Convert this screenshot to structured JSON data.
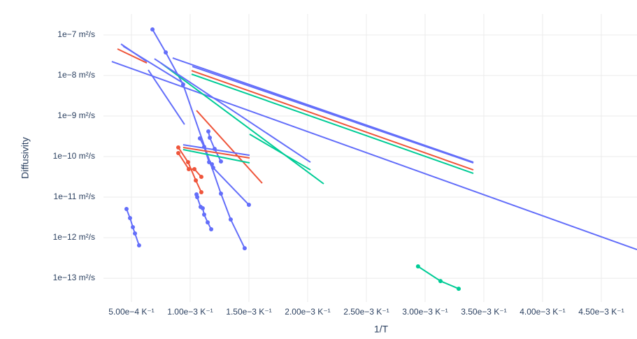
{
  "chart_data": {
    "type": "line",
    "x_label": "1/T",
    "y_label": "Diffusivity",
    "y_log": true,
    "grid": true,
    "xlim": [
      0.000262,
      0.004804
    ],
    "ylim": [
      3.29e-07,
      2.6e-14
    ],
    "xticks": [
      {
        "value": 0.0005,
        "label": "5.00e−4 K⁻¹"
      },
      {
        "value": 0.001,
        "label": "1.00e−3 K⁻¹"
      },
      {
        "value": 0.0015,
        "label": "1.50e−3 K⁻¹"
      },
      {
        "value": 0.002,
        "label": "2.00e−3 K⁻¹"
      },
      {
        "value": 0.0025,
        "label": "2.50e−3 K⁻¹"
      },
      {
        "value": 0.003,
        "label": "3.00e−3 K⁻¹"
      },
      {
        "value": 0.0035,
        "label": "3.50e−3 K⁻¹"
      },
      {
        "value": 0.004,
        "label": "4.00e−3 K⁻¹"
      },
      {
        "value": 0.0045,
        "label": "4.50e−3 K⁻¹"
      }
    ],
    "yticks": [
      {
        "value": 1e-07,
        "label": "1e−7 m²/s"
      },
      {
        "value": 1e-08,
        "label": "1e−8 m²/s"
      },
      {
        "value": 1e-09,
        "label": "1e−9 m²/s"
      },
      {
        "value": 1e-10,
        "label": "1e−10 m²/s"
      },
      {
        "value": 1e-11,
        "label": "1e−11 m²/s"
      },
      {
        "value": 1e-12,
        "label": "1e−12 m²/s"
      },
      {
        "value": 1e-13,
        "label": "1e−13 m²/s"
      }
    ],
    "series": [
      {
        "color": "#636efa",
        "markers": false,
        "x": [
          0.000333,
          0.004804
        ],
        "values": [
          2.21e-08,
          5.09e-13
        ]
      },
      {
        "color": "#636efa",
        "markers": false,
        "x": [
          0.000851,
          0.003411
        ],
        "values": [
          2.7e-08,
          7.28e-11
        ]
      },
      {
        "color": "#636efa",
        "markers": false,
        "x": [
          0.001018,
          0.003411
        ],
        "values": [
          1.67e-08,
          7e-11
        ]
      },
      {
        "color": "#ef553b",
        "markers": false,
        "x": [
          0.001012,
          0.003411
        ],
        "values": [
          1.32e-08,
          4.7e-11
        ]
      },
      {
        "color": "#00cc96",
        "markers": false,
        "x": [
          0.001012,
          0.003411
        ],
        "values": [
          1.08e-08,
          3.86e-11
        ]
      },
      {
        "color": "#636efa",
        "markers": true,
        "x": [
          0.000679,
          0.000792,
          0.00094,
          0.001262,
          0.001345,
          0.001464
        ],
        "values": [
          1.37e-07,
          3.71e-08,
          5.97e-09,
          1.22e-11,
          2.81e-12,
          5.51e-13
        ]
      },
      {
        "color": "#636efa",
        "markers": true,
        "x": [
          0.001083,
          0.001119,
          0.001161,
          0.001185
        ],
        "values": [
          2.81e-10,
          1.74e-10,
          7.28e-11,
          6.46e-11
        ]
      },
      {
        "color": "#636efa",
        "markers": true,
        "x": [
          0.001155,
          0.001167,
          0.001208,
          0.001262
        ],
        "values": [
          4.18e-10,
          2.92e-10,
          1.55e-10,
          7.57e-11
        ]
      },
      {
        "color": "#636efa",
        "markers": true,
        "x": [
          0.001196,
          0.0015
        ],
        "values": [
          5.3e-11,
          6.46e-12
        ]
      },
      {
        "color": "#ef553b",
        "markers": true,
        "x": [
          0.000899,
          0.000982,
          0.001048,
          0.001095
        ],
        "values": [
          1.68e-10,
          7.28e-11,
          2.59e-11,
          1.32e-11
        ]
      },
      {
        "color": "#ef553b",
        "markers": true,
        "x": [
          0.000899,
          0.000988,
          0.001036,
          0.001095
        ],
        "values": [
          1.22e-10,
          4.9e-11,
          4.9e-11,
          3.16e-11
        ]
      },
      {
        "color": "#ef553b",
        "markers": false,
        "x": [
          0.001054,
          0.001613
        ],
        "values": [
          1.37e-09,
          2.21e-11
        ]
      },
      {
        "color": "#636efa",
        "markers": true,
        "x": [
          0.001054,
          0.00106,
          0.001089,
          0.001107,
          0.001119,
          0.001149,
          0.001179
        ],
        "values": [
          1.17e-11,
          1e-11,
          5.74e-12,
          5.3e-12,
          3.71e-12,
          2.39e-12,
          1.61e-12
        ]
      },
      {
        "color": "#636efa",
        "markers": true,
        "x": [
          0.000458,
          0.000488,
          0.000512,
          0.00053,
          0.000565
        ],
        "values": [
          5.09e-12,
          3.04e-12,
          1.82e-12,
          1.27e-12,
          6.46e-13
        ]
      },
      {
        "color": "#00cc96",
        "markers": true,
        "x": [
          0.00294,
          0.003131,
          0.003286
        ],
        "values": [
          1.96e-13,
          8.53e-14,
          5.51e-14
        ]
      },
      {
        "color": "#636efa",
        "markers": false,
        "x": [
          0.00094,
          0.001506
        ],
        "values": [
          1.96e-10,
          1.08e-10
        ]
      },
      {
        "color": "#ef553b",
        "markers": false,
        "x": [
          0.00094,
          0.001506
        ],
        "values": [
          1.68e-10,
          9.25e-11
        ]
      },
      {
        "color": "#00cc96",
        "markers": false,
        "x": [
          0.00094,
          0.001506
        ],
        "values": [
          1.49e-10,
          7e-11
        ]
      },
      {
        "color": "#00cc96",
        "markers": false,
        "x": [
          0.001506,
          0.002024
        ],
        "values": [
          3.56e-10,
          4.7e-11
        ]
      },
      {
        "color": "#00cc96",
        "markers": false,
        "x": [
          0.00075,
          0.002137
        ],
        "values": [
          2.04e-08,
          2.13e-11
        ]
      },
      {
        "color": "#636efa",
        "markers": false,
        "x": [
          0.000696,
          0.002024
        ],
        "values": [
          2.59e-08,
          7.28e-11
        ]
      },
      {
        "color": "#636efa",
        "markers": false,
        "x": [
          0.000643,
          0.000952
        ],
        "values": [
          1.37e-08,
          6.21e-10
        ]
      },
      {
        "color": "#636efa",
        "markers": false,
        "x": [
          0.000411,
          0.000631
        ],
        "values": [
          5.97e-08,
          2.21e-08
        ]
      },
      {
        "color": "#ef553b",
        "markers": false,
        "x": [
          0.000381,
          0.000631
        ],
        "values": [
          4.52e-08,
          2.04e-08
        ]
      },
      {
        "color": "#636efa",
        "markers": false,
        "x": [
          0.000429,
          0.000952
        ],
        "values": [
          5.3e-08,
          6.21e-09
        ]
      }
    ]
  }
}
